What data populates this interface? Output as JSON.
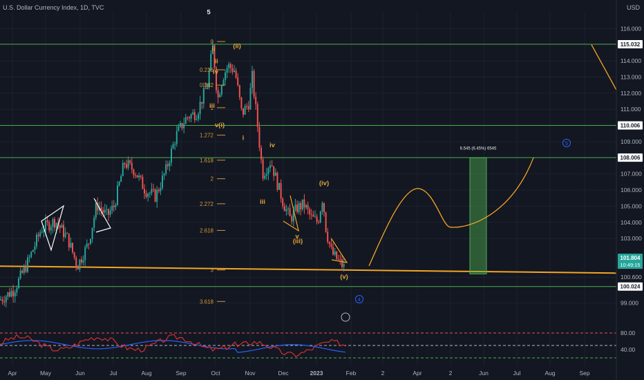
{
  "header": {
    "title": "U.S. Dollar Currency Index, 1D, TVC",
    "currency": "USD"
  },
  "chart_data": {
    "type": "candlestick",
    "ylim": [
      98.0,
      117.0
    ],
    "y_ticks": [
      "116.000",
      "114.000",
      "113.000",
      "112.000",
      "111.000",
      "109.000",
      "107.000",
      "106.000",
      "105.000",
      "104.000",
      "103.000",
      "100.600",
      "99.000"
    ],
    "y_tick_values": [
      116,
      114,
      113,
      112,
      111,
      109,
      107,
      106,
      105,
      104,
      103,
      100.6,
      99
    ],
    "x_labels": [
      "Apr",
      "May",
      "Jun",
      "Jul",
      "Aug",
      "Sep",
      "Oct",
      "Nov",
      "Dec",
      "2023",
      "Feb",
      "2",
      "Apr",
      "2",
      "Jun",
      "Jul",
      "Aug",
      "Sep"
    ],
    "price_badges": [
      {
        "label": "115.032",
        "value": 115.032
      },
      {
        "label": "110.006",
        "value": 110.006
      },
      {
        "label": "108.006",
        "value": 108.006
      },
      {
        "label": "100.024",
        "value": 100.024
      }
    ],
    "current_price": {
      "label": "101.804",
      "time": "10:49:15",
      "value": 101.804
    },
    "horizontal_levels": [
      115.032,
      110.006,
      108.006,
      100.024
    ],
    "fib_levels": [
      {
        "label": "0",
        "value": 115.2
      },
      {
        "label": "0.236",
        "value": 113.45
      },
      {
        "label": "0.382",
        "value": 112.5
      },
      {
        "label": "1",
        "value": 111.1
      },
      {
        "label": "1.272",
        "value": 109.4
      },
      {
        "label": "1.618",
        "value": 107.85
      },
      {
        "label": "2",
        "value": 106.7
      },
      {
        "label": "2.272",
        "value": 105.15
      },
      {
        "label": "2.618",
        "value": 103.5
      },
      {
        "label": "3",
        "value": 101.05
      },
      {
        "label": "3.618",
        "value": 99.1
      }
    ],
    "wave_labels": [
      {
        "label": "5",
        "style": "white",
        "value": 116.9
      },
      {
        "label": "(ii)",
        "style": "orange",
        "value": 114.8
      },
      {
        "label": "ii",
        "style": "orange",
        "value": 114.6
      },
      {
        "label": "ii",
        "style": "orange",
        "value": 113.85
      },
      {
        "label": "iv",
        "style": "orange",
        "value": 113.2
      },
      {
        "label": "iii",
        "style": "orange",
        "value": 111.1
      },
      {
        "label": "v(i)",
        "style": "orange",
        "value": 109.9
      },
      {
        "label": "i",
        "style": "orange",
        "value": 109.1
      },
      {
        "label": "iv",
        "style": "orange",
        "value": 108.65
      },
      {
        "label": "iii",
        "style": "orange",
        "value": 105.15
      },
      {
        "label": "(iv)",
        "style": "orange",
        "value": 106.3
      },
      {
        "label": "v",
        "style": "orange",
        "value": 103.0
      },
      {
        "label": "(iii)",
        "style": "orange",
        "value": 102.7
      },
      {
        "label": "(v)",
        "style": "orange",
        "value": 100.5
      }
    ],
    "position_box": {
      "label": "6.545 (6.45%) 6545",
      "top": 108.0,
      "bottom": 100.8
    },
    "projection": [
      {
        "date": "2023-02-01",
        "value": 101.3
      },
      {
        "date": "2023-03-01",
        "value": 104.5
      },
      {
        "date": "2023-03-30",
        "value": 106.1
      },
      {
        "date": "2023-05-01",
        "value": 103.7
      },
      {
        "date": "2023-05-29",
        "value": 103.9
      },
      {
        "date": "2023-07-01",
        "value": 108.0
      }
    ],
    "trendline": {
      "start_value": 101.2,
      "end_value": 100.9
    },
    "rsi": {
      "upper": 80,
      "middle": 50,
      "lower": 20,
      "tick_labels": [
        "80.00",
        "40.00"
      ]
    },
    "markers": [
      {
        "label": "4",
        "value": 100.2
      },
      {
        "label": "5",
        "value": 108.5
      }
    ]
  }
}
